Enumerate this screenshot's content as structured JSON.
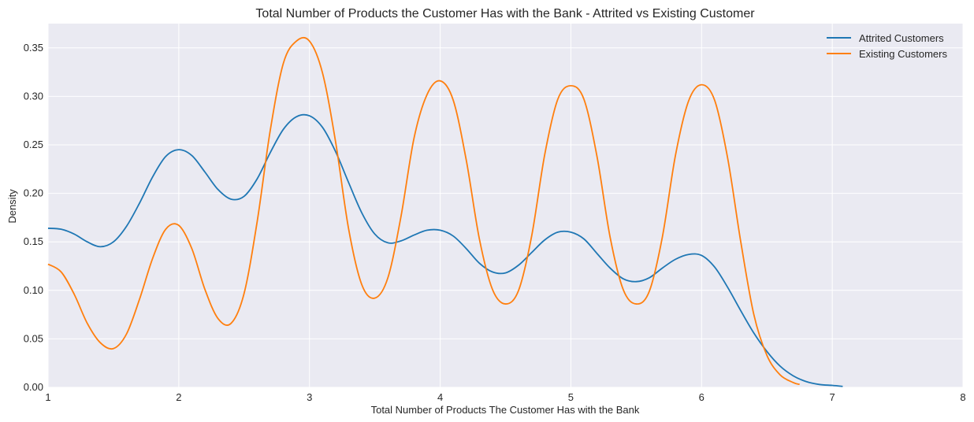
{
  "chart_data": {
    "type": "line",
    "title": "Total Number of Products the Customer Has with the Bank - Attrited vs Existing Customer",
    "xlabel": "Total Number of Products The Customer Has with the Bank",
    "ylabel": "Density",
    "xlim": [
      1,
      8
    ],
    "ylim": [
      0,
      0.375
    ],
    "xticks": [
      1,
      2,
      3,
      4,
      5,
      6,
      7,
      8
    ],
    "yticks": [
      0.0,
      0.05,
      0.1,
      0.15,
      0.2,
      0.25,
      0.3,
      0.35
    ],
    "grid": true,
    "legend_position": "top-right",
    "colors": {
      "background": "#eaeaf2",
      "grid": "#ffffff"
    },
    "series": [
      {
        "name": "Attrited Customers",
        "color": "#1f77b4",
        "x": [
          1.0,
          1.1,
          1.2,
          1.3,
          1.4,
          1.5,
          1.6,
          1.7,
          1.8,
          1.9,
          2.0,
          2.1,
          2.2,
          2.3,
          2.4,
          2.5,
          2.6,
          2.7,
          2.8,
          2.9,
          3.0,
          3.1,
          3.2,
          3.3,
          3.4,
          3.5,
          3.6,
          3.7,
          3.8,
          3.9,
          4.0,
          4.1,
          4.2,
          4.3,
          4.4,
          4.5,
          4.6,
          4.7,
          4.8,
          4.9,
          5.0,
          5.1,
          5.2,
          5.3,
          5.4,
          5.5,
          5.6,
          5.7,
          5.8,
          5.9,
          6.0,
          6.1,
          6.2,
          6.3,
          6.4,
          6.5,
          6.6,
          6.7,
          6.8,
          6.9,
          7.0,
          7.08
        ],
        "y": [
          0.164,
          0.163,
          0.158,
          0.15,
          0.145,
          0.15,
          0.166,
          0.19,
          0.217,
          0.238,
          0.245,
          0.239,
          0.222,
          0.204,
          0.194,
          0.197,
          0.215,
          0.242,
          0.266,
          0.279,
          0.28,
          0.268,
          0.243,
          0.211,
          0.18,
          0.158,
          0.149,
          0.151,
          0.157,
          0.162,
          0.162,
          0.156,
          0.143,
          0.128,
          0.119,
          0.118,
          0.126,
          0.139,
          0.152,
          0.16,
          0.16,
          0.153,
          0.138,
          0.123,
          0.112,
          0.109,
          0.113,
          0.123,
          0.132,
          0.137,
          0.136,
          0.124,
          0.103,
          0.079,
          0.056,
          0.037,
          0.022,
          0.012,
          0.006,
          0.003,
          0.002,
          0.001
        ]
      },
      {
        "name": "Existing Customers",
        "color": "#ff7f0e",
        "x": [
          1.0,
          1.1,
          1.2,
          1.3,
          1.4,
          1.5,
          1.6,
          1.7,
          1.8,
          1.9,
          2.0,
          2.1,
          2.2,
          2.3,
          2.4,
          2.5,
          2.6,
          2.7,
          2.8,
          2.9,
          3.0,
          3.1,
          3.2,
          3.3,
          3.4,
          3.5,
          3.6,
          3.7,
          3.8,
          3.9,
          4.0,
          4.1,
          4.2,
          4.3,
          4.4,
          4.5,
          4.6,
          4.7,
          4.8,
          4.9,
          5.0,
          5.1,
          5.2,
          5.3,
          5.4,
          5.5,
          5.6,
          5.7,
          5.8,
          5.9,
          6.0,
          6.1,
          6.2,
          6.3,
          6.4,
          6.5,
          6.6,
          6.7,
          6.75
        ],
        "y": [
          0.127,
          0.119,
          0.096,
          0.066,
          0.046,
          0.04,
          0.055,
          0.091,
          0.133,
          0.163,
          0.167,
          0.143,
          0.101,
          0.071,
          0.066,
          0.097,
          0.171,
          0.265,
          0.334,
          0.357,
          0.357,
          0.324,
          0.253,
          0.163,
          0.106,
          0.092,
          0.113,
          0.176,
          0.257,
          0.302,
          0.316,
          0.296,
          0.234,
          0.153,
          0.101,
          0.086,
          0.1,
          0.156,
          0.24,
          0.297,
          0.311,
          0.297,
          0.238,
          0.155,
          0.101,
          0.086,
          0.099,
          0.155,
          0.239,
          0.295,
          0.312,
          0.296,
          0.236,
          0.15,
          0.075,
          0.033,
          0.013,
          0.005,
          0.003
        ]
      }
    ]
  }
}
